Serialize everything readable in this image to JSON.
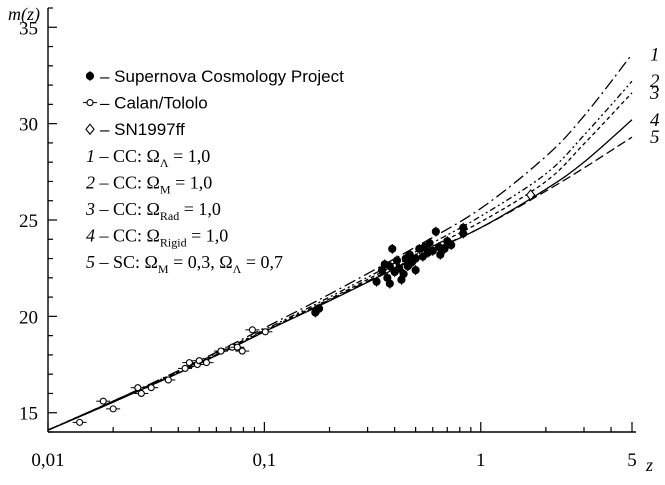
{
  "chart_data": {
    "type": "scatter",
    "xlabel": "z",
    "ylabel": "m(z)",
    "xscale": "log",
    "xlim": [
      0.01,
      5
    ],
    "ylim": [
      14,
      36
    ],
    "xticks": [
      {
        "value": 0.01,
        "label": "0,01"
      },
      {
        "value": 0.1,
        "label": "0,1"
      },
      {
        "value": 1,
        "label": "1"
      },
      {
        "value": 5,
        "label": "5"
      }
    ],
    "yticks": [
      {
        "value": 15,
        "label": "15"
      },
      {
        "value": 20,
        "label": "20"
      },
      {
        "value": 25,
        "label": "25"
      },
      {
        "value": 30,
        "label": "30"
      },
      {
        "value": 35,
        "label": "35"
      }
    ],
    "legend_position": "top-left",
    "legend": [
      {
        "marker": "filled-circle",
        "text": "– Supernova Cosmology Project"
      },
      {
        "marker": "open-circle",
        "text": "– Calan/Tololo"
      },
      {
        "marker": "open-diamond",
        "text": "– SN1997ff"
      },
      {
        "num": "1",
        "pre": " – CC: Ω",
        "sub": "Λ",
        "post": " = 1,0",
        "sub2": "",
        "post2": ""
      },
      {
        "num": "2",
        "pre": " – CC: Ω",
        "sub": "M",
        "post": " = 1,0",
        "sub2": "",
        "post2": ""
      },
      {
        "num": "3",
        "pre": " – CC: Ω",
        "sub": "Rad",
        "post": " = 1,0",
        "sub2": "",
        "post2": ""
      },
      {
        "num": "4",
        "pre": " – CC: Ω",
        "sub": "Rigid",
        "post": " = 1,0",
        "sub2": "",
        "post2": ""
      },
      {
        "num": "5",
        "pre": " – SC: Ω",
        "sub": "M",
        "post": " = 0,3, Ω",
        "sub2": "Λ",
        "post2": " = 0,7"
      }
    ],
    "curves": [
      {
        "label": "1",
        "dash": "dashdot",
        "x": [
          0.01,
          0.02,
          0.05,
          0.1,
          0.2,
          0.5,
          1,
          2,
          3,
          5
        ],
        "y": [
          14.1,
          15.6,
          17.7,
          19.4,
          21.15,
          23.6,
          25.6,
          28.3,
          30.4,
          33.6
        ]
      },
      {
        "label": "2",
        "dash": "dashdotdot",
        "x": [
          0.01,
          0.02,
          0.05,
          0.1,
          0.2,
          0.5,
          1,
          2,
          3,
          5
        ],
        "y": [
          14.1,
          15.6,
          17.65,
          19.3,
          21.0,
          23.35,
          25.2,
          27.4,
          29.4,
          32.2
        ]
      },
      {
        "label": "3",
        "dash": "dashed-short",
        "x": [
          0.01,
          0.02,
          0.05,
          0.1,
          0.2,
          0.5,
          1,
          2,
          3,
          5
        ],
        "y": [
          14.1,
          15.6,
          17.6,
          19.25,
          20.9,
          23.2,
          24.9,
          27.0,
          28.95,
          31.6
        ]
      },
      {
        "label": "4",
        "dash": "solid",
        "x": [
          0.01,
          0.02,
          0.05,
          0.1,
          0.2,
          0.5,
          1,
          2,
          3,
          5
        ],
        "y": [
          14.1,
          15.55,
          17.55,
          19.2,
          20.8,
          23.0,
          24.6,
          26.6,
          28.0,
          30.2
        ]
      },
      {
        "label": "5",
        "dash": "dashed-long",
        "x": [
          0.01,
          0.02,
          0.05,
          0.1,
          0.2,
          0.5,
          1,
          2,
          3,
          5
        ],
        "y": [
          14.1,
          15.55,
          17.55,
          19.2,
          20.85,
          23.05,
          24.6,
          26.5,
          27.7,
          29.3
        ]
      }
    ],
    "series": [
      {
        "marker": "filled-circle",
        "points": [
          {
            "x": 0.172,
            "y": 20.2
          },
          {
            "x": 0.179,
            "y": 20.4
          },
          {
            "x": 0.33,
            "y": 21.8
          },
          {
            "x": 0.35,
            "y": 22.4
          },
          {
            "x": 0.36,
            "y": 22.7
          },
          {
            "x": 0.37,
            "y": 22.0
          },
          {
            "x": 0.38,
            "y": 22.6
          },
          {
            "x": 0.38,
            "y": 21.7
          },
          {
            "x": 0.39,
            "y": 23.5
          },
          {
            "x": 0.4,
            "y": 22.3
          },
          {
            "x": 0.41,
            "y": 22.9
          },
          {
            "x": 0.42,
            "y": 22.5
          },
          {
            "x": 0.43,
            "y": 21.9
          },
          {
            "x": 0.44,
            "y": 22.2
          },
          {
            "x": 0.45,
            "y": 23.0
          },
          {
            "x": 0.46,
            "y": 22.6
          },
          {
            "x": 0.47,
            "y": 23.2
          },
          {
            "x": 0.48,
            "y": 22.8
          },
          {
            "x": 0.5,
            "y": 22.4
          },
          {
            "x": 0.5,
            "y": 23.0
          },
          {
            "x": 0.52,
            "y": 23.5
          },
          {
            "x": 0.54,
            "y": 23.1
          },
          {
            "x": 0.55,
            "y": 23.6
          },
          {
            "x": 0.57,
            "y": 23.3
          },
          {
            "x": 0.58,
            "y": 23.8
          },
          {
            "x": 0.6,
            "y": 23.4
          },
          {
            "x": 0.62,
            "y": 24.4
          },
          {
            "x": 0.64,
            "y": 23.6
          },
          {
            "x": 0.65,
            "y": 23.2
          },
          {
            "x": 0.68,
            "y": 23.5
          },
          {
            "x": 0.7,
            "y": 23.9
          },
          {
            "x": 0.73,
            "y": 23.7
          },
          {
            "x": 0.83,
            "y": 24.3
          },
          {
            "x": 0.83,
            "y": 24.6
          }
        ]
      },
      {
        "marker": "open-circle",
        "points": [
          {
            "x": 0.014,
            "y": 14.5
          },
          {
            "x": 0.018,
            "y": 15.6
          },
          {
            "x": 0.02,
            "y": 15.2
          },
          {
            "x": 0.026,
            "y": 16.3
          },
          {
            "x": 0.027,
            "y": 16.0
          },
          {
            "x": 0.03,
            "y": 16.3
          },
          {
            "x": 0.036,
            "y": 16.7
          },
          {
            "x": 0.043,
            "y": 17.3
          },
          {
            "x": 0.045,
            "y": 17.6
          },
          {
            "x": 0.049,
            "y": 17.5
          },
          {
            "x": 0.05,
            "y": 17.7
          },
          {
            "x": 0.054,
            "y": 17.6
          },
          {
            "x": 0.063,
            "y": 18.2
          },
          {
            "x": 0.071,
            "y": 18.4
          },
          {
            "x": 0.075,
            "y": 18.4
          },
          {
            "x": 0.079,
            "y": 18.2
          },
          {
            "x": 0.088,
            "y": 19.3
          },
          {
            "x": 0.101,
            "y": 19.2
          }
        ]
      },
      {
        "marker": "open-diamond",
        "points": [
          {
            "x": 1.7,
            "y": 26.3
          }
        ]
      }
    ]
  }
}
